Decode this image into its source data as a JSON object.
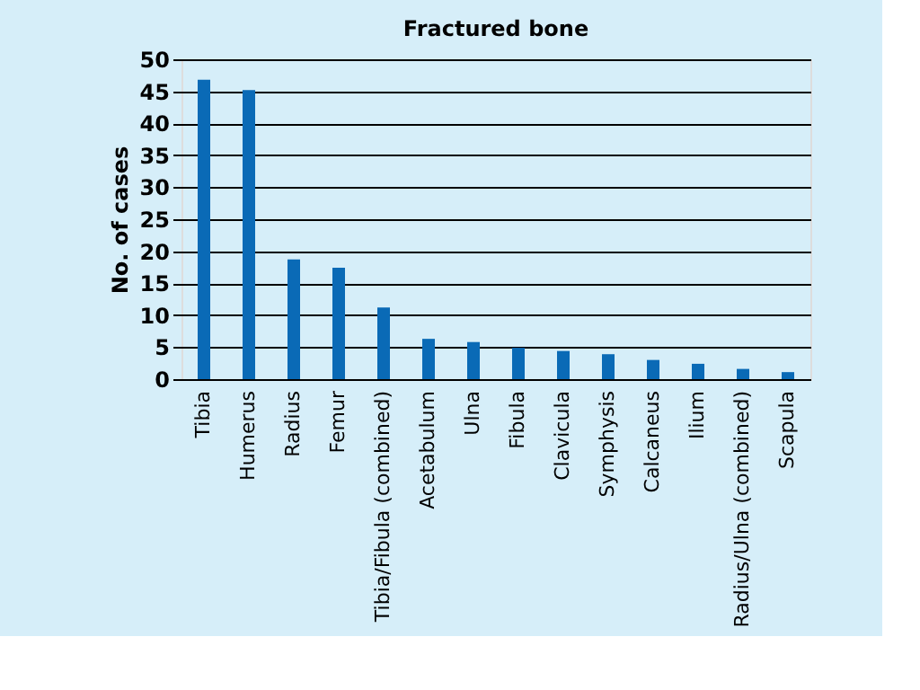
{
  "chart_data": {
    "type": "bar",
    "title": "Fractured bone",
    "ylabel": "No. of cases",
    "categories": [
      "Tibia",
      "Humerus",
      "Radius",
      "Femur",
      "Tibia/Fibula (combined)",
      "Acetabulum",
      "Ulna",
      "Fibula",
      "Clavicula",
      "Symphysis",
      "Calcaneus",
      "Ilium",
      "Radius/Ulna (combined)",
      "Scapula"
    ],
    "values": [
      46.8,
      45.2,
      18.7,
      17.4,
      11.2,
      6.3,
      5.8,
      4.9,
      4.4,
      3.9,
      3.0,
      2.4,
      1.6,
      1.1
    ],
    "color": "#0a6ab6",
    "ylim": [
      0,
      50
    ],
    "yticks": [
      0,
      5,
      10,
      15,
      20,
      25,
      30,
      35,
      40,
      45,
      50
    ],
    "grid": "y"
  }
}
